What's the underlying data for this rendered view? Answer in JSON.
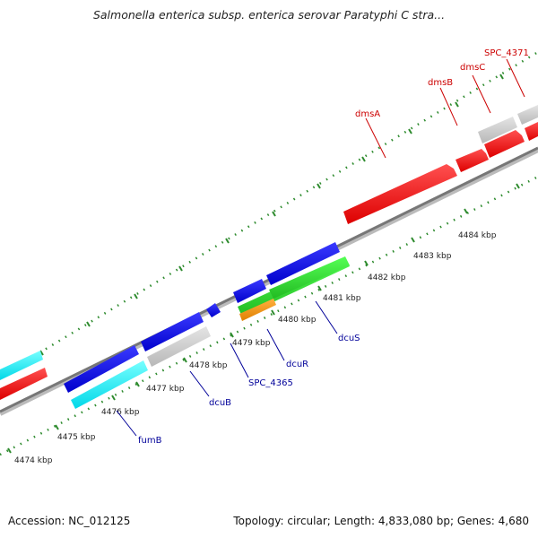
{
  "title": "Salmonella enterica subsp. enterica serovar Paratyphi C stra...",
  "footer": {
    "accession": "Accession: NC_012125",
    "summary": "Topology: circular; Length: 4,833,080 bp; Genes: 4,680"
  },
  "colors": {
    "forward_label": "#cc0000",
    "reverse_label": "#000099",
    "tick": "#2e8b2e",
    "backbone": "#888888"
  },
  "kbp_ticks": [
    "4474 kbp",
    "4475 kbp",
    "4476 kbp",
    "4477 kbp",
    "4478 kbp",
    "4479 kbp",
    "4480 kbp",
    "4481 kbp",
    "4482 kbp",
    "4483 kbp",
    "4484 kbp"
  ],
  "gene_labels": {
    "forward": [
      "dmsA",
      "dmsB",
      "dmsC",
      "SPC_4371"
    ],
    "reverse": [
      "fumB",
      "dcuB",
      "SPC_4365",
      "dcuR",
      "dcuS"
    ]
  },
  "legend": {
    "gene_colors": [
      "red",
      "blue",
      "cyan",
      "grey",
      "green",
      "orange"
    ]
  }
}
